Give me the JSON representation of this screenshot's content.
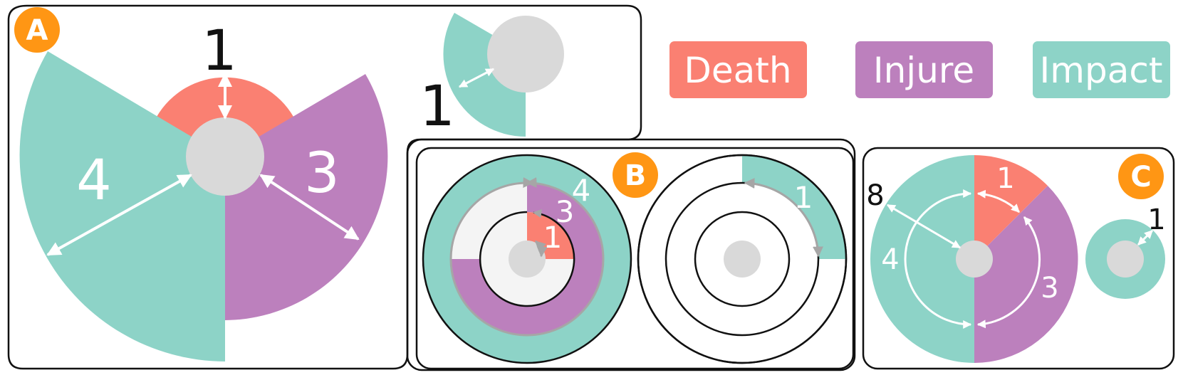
{
  "colors": {
    "death": "#FA8072",
    "injure": "#BC80BD",
    "impact": "#8DD3C7",
    "center": "#D9D9D9",
    "ring_bg": "#F4F4F4",
    "badge": "#FF9614",
    "arrow_gray": "#A6A6A6"
  },
  "legend": [
    {
      "label": "Death",
      "color_key": "death"
    },
    {
      "label": "Injure",
      "color_key": "injure"
    },
    {
      "label": "Impact",
      "color_key": "impact"
    }
  ],
  "panels": {
    "a": {
      "badge": "A",
      "values": {
        "death": "1",
        "injure": "3",
        "impact": "4"
      },
      "inset_value": "1"
    },
    "b": {
      "badge": "B",
      "left_values": {
        "impact": "4",
        "injure": "3",
        "death": "1"
      },
      "right_value": "1"
    },
    "c": {
      "badge": "C",
      "values": {
        "total": "8",
        "impact": "4",
        "death": "1",
        "injure": "3"
      },
      "small_value": "1"
    }
  }
}
